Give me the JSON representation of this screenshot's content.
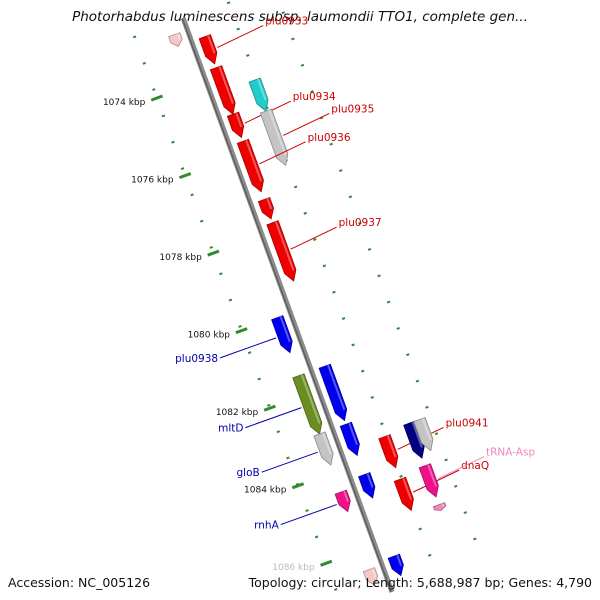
{
  "title": "Photorhabdus luminescens subsp. laumondii TTO1, complete gen...",
  "footer": {
    "accession": "Accession: NC_005126",
    "summary": "Topology: circular; Length: 5,688,987 bp; Genes: 4,790"
  },
  "colors": {
    "backbone": "#8a8a8a",
    "tick": "#2e8b2e",
    "red": "#ee0000",
    "blue": "#0000ee",
    "cyan": "#22cccc",
    "gray": "#c4c4c4",
    "olive": "#6b8e23",
    "navy": "#000080",
    "magenta": "#ee1188",
    "pink": "#ee88bb",
    "faint": "#f5c8c8",
    "label_red": "#cc0000",
    "label_blue": "#0000aa",
    "label_pink": "#ee88bb"
  },
  "axis": {
    "unit": "kbp",
    "ticks": [
      {
        "kbp": 1074,
        "label": "1074 kbp"
      },
      {
        "kbp": 1076,
        "label": "1076 kbp"
      },
      {
        "kbp": 1078,
        "label": "1078 kbp"
      },
      {
        "kbp": 1080,
        "label": "1080 kbp"
      },
      {
        "kbp": 1082,
        "label": "1082 kbp"
      },
      {
        "kbp": 1084,
        "label": "1084 kbp"
      },
      {
        "kbp": 1086,
        "label": "1086 kbp"
      }
    ]
  },
  "features": [
    {
      "name": "plu0933",
      "strand": 1,
      "start": 1073.0,
      "end": 1073.7,
      "color": "red",
      "label": "plu0933",
      "labelColor": "label_red"
    },
    {
      "name": "plu0934-a",
      "strand": 1,
      "start": 1073.8,
      "end": 1075.0,
      "color": "red"
    },
    {
      "name": "plu0934-b",
      "strand": 1,
      "start": 1075.0,
      "end": 1075.6,
      "color": "red",
      "label": "plu0934",
      "labelColor": "label_red"
    },
    {
      "name": "plu0934-cyan",
      "strand": 2,
      "start": 1074.4,
      "end": 1075.2,
      "color": "cyan"
    },
    {
      "name": "plu0935",
      "strand": 2,
      "start": 1075.2,
      "end": 1076.6,
      "color": "gray",
      "label": "plu0935",
      "labelColor": "label_red"
    },
    {
      "name": "plu0936",
      "strand": 1,
      "start": 1075.7,
      "end": 1077.0,
      "color": "red",
      "label": "plu0936",
      "labelColor": "label_red"
    },
    {
      "name": "plu0937-a",
      "strand": 1,
      "start": 1077.2,
      "end": 1077.7,
      "color": "red"
    },
    {
      "name": "plu0937-b",
      "strand": 1,
      "start": 1077.8,
      "end": 1079.3,
      "color": "red",
      "label": "plu0937",
      "labelColor": "label_red"
    },
    {
      "name": "plu0938",
      "strand": 0,
      "start": 1080.0,
      "end": 1080.9,
      "color": "blue",
      "label": "plu0938",
      "labelColor": "label_blue"
    },
    {
      "name": "mltD-olive",
      "strand": 0,
      "start": 1081.5,
      "end": 1083.0,
      "color": "olive",
      "label": "mltD",
      "labelColor": "label_blue"
    },
    {
      "name": "mltD-blue",
      "strand": 1,
      "start": 1081.5,
      "end": 1082.9,
      "color": "blue"
    },
    {
      "name": "gloB-gray",
      "strand": 0,
      "start": 1083.0,
      "end": 1083.8,
      "color": "gray",
      "label": "gloB",
      "labelColor": "label_blue"
    },
    {
      "name": "gloB-blue",
      "strand": 1,
      "start": 1083.0,
      "end": 1083.8,
      "color": "blue"
    },
    {
      "name": "plu0941-red",
      "strand": 2,
      "start": 1083.6,
      "end": 1084.4,
      "color": "red",
      "label": "plu0941",
      "labelColor": "label_red"
    },
    {
      "name": "plu0941-navy",
      "strand": 3,
      "start": 1083.5,
      "end": 1084.4,
      "color": "navy"
    },
    {
      "name": "plu0941-gray",
      "strand": 3.45,
      "start": 1083.5,
      "end": 1084.3,
      "color": "gray"
    },
    {
      "name": "rnhA-magenta",
      "strand": 0,
      "start": 1084.5,
      "end": 1085.0,
      "color": "magenta",
      "label": "rnhA",
      "labelColor": "label_blue"
    },
    {
      "name": "rnhA-blue",
      "strand": 1,
      "start": 1084.3,
      "end": 1084.9,
      "color": "blue"
    },
    {
      "name": "dnaQ",
      "strand": 2,
      "start": 1084.7,
      "end": 1085.5,
      "color": "red",
      "label": "dnaQ",
      "labelColor": "label_red"
    },
    {
      "name": "tRNA-Asp",
      "strand": 3,
      "start": 1084.6,
      "end": 1085.4,
      "color": "magenta",
      "label": "tRNA-Asp",
      "labelColor": "label_pink"
    },
    {
      "name": "small-pink",
      "strand": 3,
      "start": 1085.6,
      "end": 1085.75,
      "color": "pink"
    },
    {
      "name": "bottom-blue",
      "strand": 1,
      "start": 1086.4,
      "end": 1086.9,
      "color": "blue"
    },
    {
      "name": "bottom-faint",
      "strand": 0,
      "start": 1086.5,
      "end": 1086.9,
      "color": "faint"
    },
    {
      "name": "top-faint",
      "strand": 0,
      "start": 1072.7,
      "end": 1073.0,
      "color": "faint"
    }
  ]
}
